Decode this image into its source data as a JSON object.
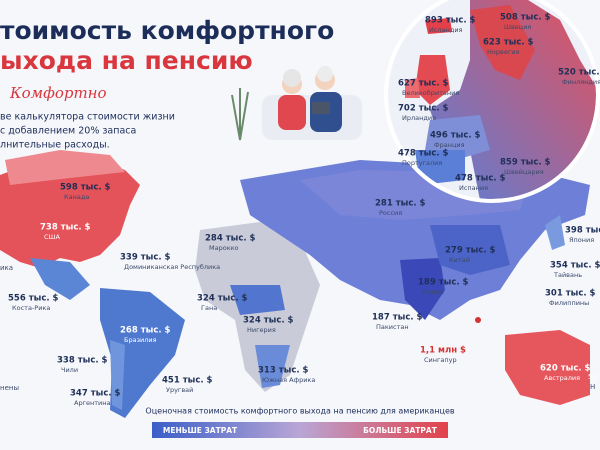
{
  "header": {
    "title_line1": "тоимость комфортного",
    "title_line2": "ыхода на пенсию",
    "tagline": "Комфортно",
    "description": [
      "ве калькулятора стоимости жизни",
      "с добавлением 20% запаса",
      "лнительные расходы."
    ]
  },
  "labels": [
    {
      "value": "598 тыс. $",
      "name": "Канада"
    },
    {
      "value": "738 тыс. $",
      "name": "США"
    },
    {
      "value": "339 тыс. $",
      "name": "Доминиканская Республика"
    },
    {
      "value": "556 тыс. $",
      "name": "Коста-Рика"
    },
    {
      "value": "268 тыс. $",
      "name": "Бразилия"
    },
    {
      "value": "338 тыс. $",
      "name": "Чили"
    },
    {
      "value": "451 тыс. $",
      "name": "Уругвай"
    },
    {
      "value": "347 тыс. $",
      "name": "Аргентина"
    },
    {
      "value": "284 тыс. $",
      "name": "Марокко"
    },
    {
      "value": "324 тыс. $",
      "name": "Гана"
    },
    {
      "value": "324 тыс. $",
      "name": "Нигерия"
    },
    {
      "value": "313 тыс. $",
      "name": "Южная Африка"
    },
    {
      "value": "281 тыс. $",
      "name": "Россия"
    },
    {
      "value": "279 тыс. $",
      "name": "Китай"
    },
    {
      "value": "189 тыс. $",
      "name": "Индия"
    },
    {
      "value": "187 тыс. $",
      "name": "Пакистан"
    },
    {
      "value": "1,1 млн $",
      "name": "Сингапур"
    },
    {
      "value": "398 тыс. $",
      "name": "Япония"
    },
    {
      "value": "354 тыс. $",
      "name": "Тайвань"
    },
    {
      "value": "301 тыс. $",
      "name": "Филиппины"
    },
    {
      "value": "620 тыс. $",
      "name": "Австралия"
    },
    {
      "value": "893 тыс. $",
      "name": "Исландия"
    },
    {
      "value": "508 тыс. $",
      "name": "Швеция"
    },
    {
      "value": "623 тыс. $",
      "name": "Норвегия"
    },
    {
      "value": "520 тыс. $",
      "name": "Финляндия"
    },
    {
      "value": "627 тыс. $",
      "name": "Великобритания"
    },
    {
      "value": "702 тыс. $",
      "name": "Ирландия"
    },
    {
      "value": "496 тыс. $",
      "name": "Франция"
    },
    {
      "value": "478 тыс. $",
      "name": "Португалия"
    },
    {
      "value": "478 тыс. $",
      "name": "Испания"
    },
    {
      "value": "859 тыс. $",
      "name": "Швейцария"
    }
  ],
  "fragments": [
    "ика",
    "нены",
    "52",
    "Н"
  ],
  "legend": {
    "caption": "Оценочная стоимость комфортного выхода на пенсию для американцев",
    "low": "МЕНЬШЕ ЗАТРАТ",
    "high": "БОЛЬШЕ ЗАТРАТ"
  }
}
